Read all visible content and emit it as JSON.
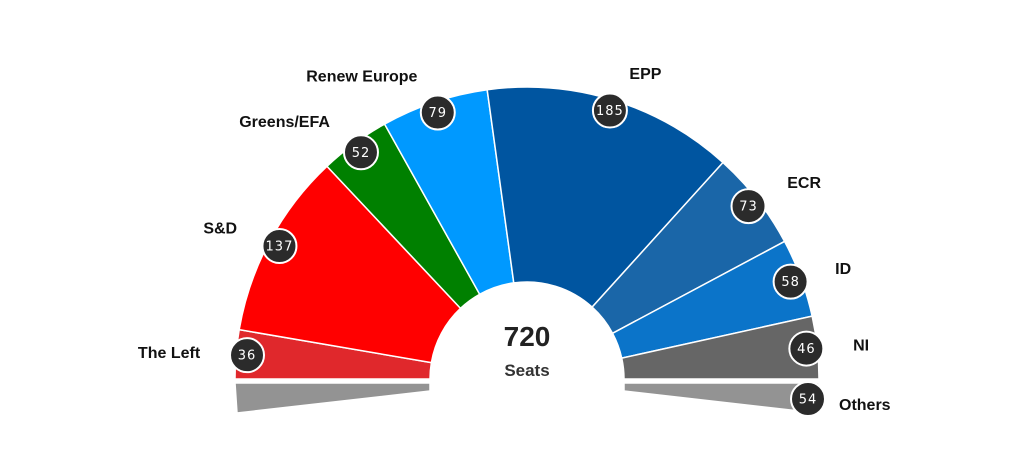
{
  "chart_data": {
    "type": "pie",
    "variant": "parliament-half-donut",
    "total": "720",
    "total_label": "Seats",
    "series": [
      {
        "name": "The Left",
        "value": 36,
        "color": "#e0282c"
      },
      {
        "name": "S&D",
        "value": 137,
        "color": "#ff0000"
      },
      {
        "name": "Greens/EFA",
        "value": 52,
        "color": "#008000"
      },
      {
        "name": "Renew Europe",
        "value": 79,
        "color": "#0099ff"
      },
      {
        "name": "EPP",
        "value": 185,
        "color": "#0055a0"
      },
      {
        "name": "ECR",
        "value": 73,
        "color": "#1a66a8"
      },
      {
        "name": "ID",
        "value": 58,
        "color": "#0b74c9"
      },
      {
        "name": "NI",
        "value": 46,
        "color": "#666666"
      }
    ],
    "others": {
      "name": "Others",
      "value": 54,
      "color": "#939393"
    },
    "grid": false
  }
}
